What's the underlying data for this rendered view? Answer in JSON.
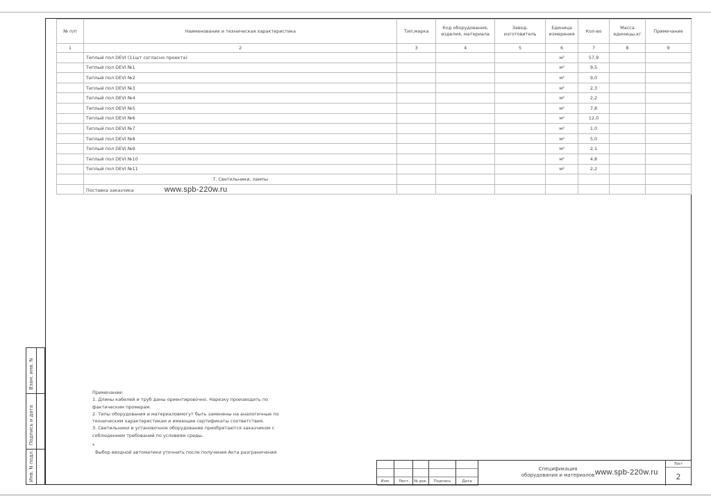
{
  "table": {
    "headers": [
      "№ п/п",
      "Наименование и техническая характеристика",
      "Тип,марка",
      "Код оборудования, изделия, материала",
      "Завод-изготовитель",
      "Единица измерения",
      "Кол-во",
      "Масса единицы,кг",
      "Примечание"
    ],
    "column_numbers": [
      "1",
      "2",
      "3",
      "4",
      "5",
      "6",
      "7",
      "8",
      "9"
    ],
    "rows": [
      {
        "name": "Теплый пол DEVI (11шт согласно проекта)",
        "unit": "м²",
        "qty": "57,9"
      },
      {
        "name": "Теплый пол DEVI №1",
        "unit": "м²",
        "qty": "9,5"
      },
      {
        "name": "Теплый пол DEVI №2",
        "unit": "м²",
        "qty": "9,0"
      },
      {
        "name": "Теплый пол DEVI №3",
        "unit": "м²",
        "qty": "2,3"
      },
      {
        "name": "Теплый пол DEVI №4",
        "unit": "м²",
        "qty": "2,2"
      },
      {
        "name": "Теплый пол DEVI №5",
        "unit": "м²",
        "qty": "7,8"
      },
      {
        "name": "Теплый пол DEVI №6",
        "unit": "м²",
        "qty": "12,0"
      },
      {
        "name": "Теплый пол DEVI №7",
        "unit": "м²",
        "qty": "1,0"
      },
      {
        "name": "Теплый пол DEVI №8",
        "unit": "м²",
        "qty": "5,0"
      },
      {
        "name": "Теплый пол DEVI №9",
        "unit": "м²",
        "qty": "2,1"
      },
      {
        "name": "Теплый пол DEVI №10",
        "unit": "м²",
        "qty": "4,8"
      },
      {
        "name": "Теплый пол DEVI №11",
        "unit": "м²",
        "qty": "2,2"
      }
    ],
    "section": "7. Светильники, лампы",
    "customer_supply": "Поставка заказчика",
    "watermark": "www.spb-220w.ru"
  },
  "notes": {
    "title": "Примечание:",
    "lines": [
      "1. Длины кабелей и труб даны ориентировочно. Нарезку производить по",
      "фактическим промерам.",
      "2. Типы оборудования и материаловмогут быть заменены на аналогичные по",
      "техническим характеристикам и имеющие сертификаты соответствия.",
      "3. Светильники и установочное оборудование приобретаются заказчиком с",
      "соблюдением требований по условиям среды.",
      "*",
      "  Выбор вводной автоматики уточнить после получения Акта разграничения"
    ]
  },
  "stamp": {
    "labels": [
      "Изм.",
      "Лист",
      "№ док.",
      "Подпись",
      "Дата"
    ],
    "title_line1": "Спецификация",
    "title_line2": "оборудования и материалов",
    "watermark": "www.spb-220w.ru",
    "sheet_label": "Лист",
    "sheet_number": "2"
  },
  "side_stamp": [
    "Взам. инв. N",
    "Подпись и дата",
    "Инв. N подл."
  ]
}
